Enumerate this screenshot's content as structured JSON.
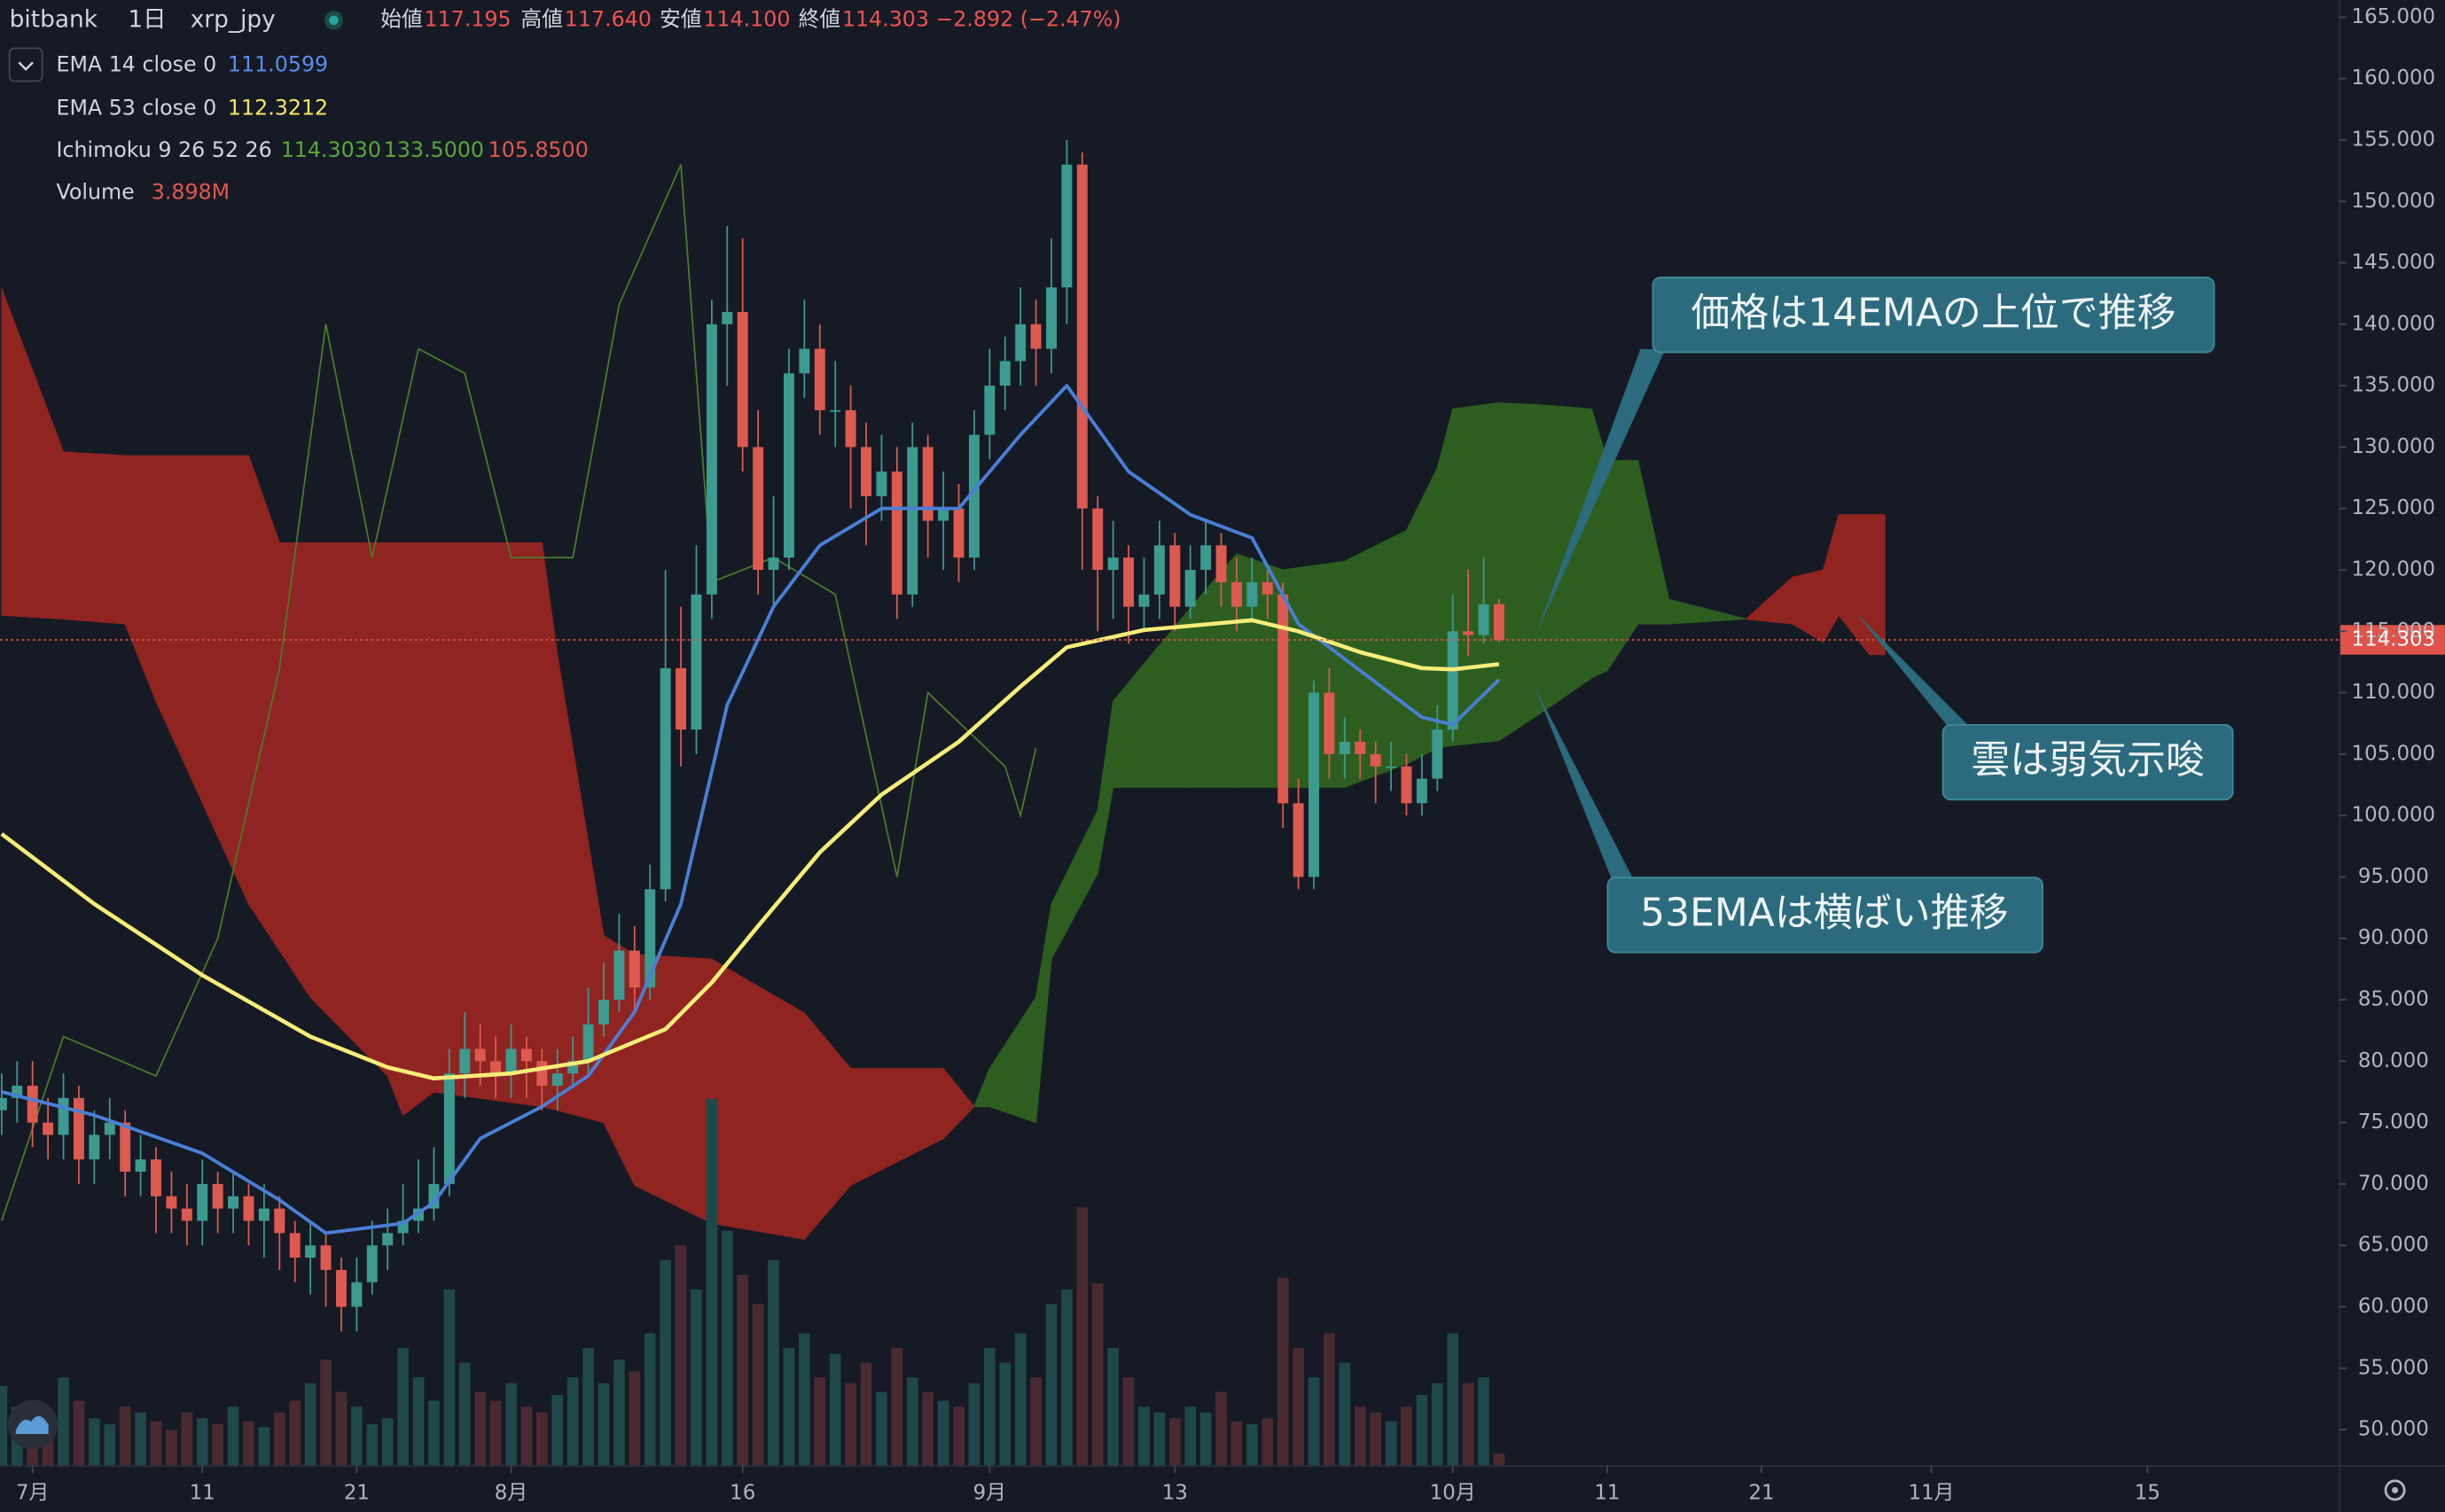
{
  "chart_data": {
    "type": "candlestick",
    "header": {
      "exchange": "bitbank",
      "interval": "1日",
      "symbol": "xrp_jpy",
      "open_label": "始値",
      "open": "117.195",
      "high_label": "高値",
      "high": "117.640",
      "low_label": "安値",
      "low": "114.100",
      "close_label": "終値",
      "close": "114.303",
      "change": "−2.892 (−2.47%)"
    },
    "up_color": "#3d9a8f",
    "down_color": "#dd5a50",
    "volume_up_color": "#1f4849",
    "volume_down_color": "#4a2a31",
    "x": [
      -2,
      -1,
      0,
      1,
      2,
      3,
      4,
      5,
      6,
      7,
      8,
      9,
      10,
      11,
      12,
      13,
      14,
      15,
      16,
      17,
      18,
      19,
      20,
      21,
      22,
      23,
      24,
      25,
      26,
      27,
      28,
      29,
      30,
      31,
      32,
      33,
      34,
      35,
      36,
      37,
      38,
      39,
      40,
      41,
      42,
      43,
      44,
      45,
      46,
      47,
      48,
      49,
      50,
      51,
      52,
      53,
      54,
      55,
      56,
      57,
      58,
      59,
      60,
      61,
      62,
      63,
      64,
      65,
      66,
      67,
      68,
      69,
      70,
      71,
      72,
      73,
      74,
      75,
      76,
      77,
      78,
      79,
      80,
      81,
      82,
      83,
      84,
      85,
      86,
      87,
      88,
      89,
      90,
      91,
      92,
      93,
      94,
      95
    ],
    "open": [
      76,
      77,
      78,
      75,
      74,
      77,
      72,
      74,
      75,
      71,
      72,
      69,
      68,
      67,
      70,
      68,
      69,
      67,
      68,
      66,
      64,
      65,
      63,
      60,
      62,
      65,
      66,
      67,
      68,
      70,
      79,
      81,
      80,
      79,
      81,
      80,
      78,
      79,
      80,
      83,
      85,
      89,
      86,
      94,
      112,
      107,
      118,
      140,
      141,
      130,
      120,
      121,
      136,
      138,
      133,
      133,
      130,
      126,
      128,
      118,
      130,
      124,
      125,
      121,
      131,
      135,
      137,
      140,
      138,
      143,
      153,
      125,
      120,
      121,
      117,
      118,
      122,
      117,
      120,
      122,
      119,
      117,
      119,
      118,
      101,
      95,
      110,
      105,
      106,
      105,
      104,
      104,
      101,
      103,
      107,
      115,
      114.7,
      117.195
    ],
    "high": [
      79,
      80,
      80,
      77,
      79,
      78,
      76,
      77,
      76,
      74,
      73,
      71,
      70,
      72,
      71,
      71,
      70,
      70,
      69,
      67,
      67,
      66,
      64,
      64,
      67,
      68,
      70,
      72,
      73,
      81,
      84,
      83,
      82,
      83,
      82,
      81,
      81,
      82,
      86,
      88,
      92,
      91,
      96,
      120,
      117,
      122,
      142,
      148,
      147,
      133,
      126,
      138,
      142,
      140,
      137,
      135,
      132,
      131,
      130,
      132,
      131,
      128,
      127,
      133,
      138,
      139,
      143,
      142,
      147,
      155,
      154,
      126,
      124,
      122,
      121,
      124,
      123,
      122,
      124,
      123,
      121,
      121,
      120,
      119,
      103,
      111,
      112,
      108,
      107,
      106,
      106,
      105,
      105,
      109,
      118,
      120,
      121,
      117.64
    ],
    "low": [
      74,
      75,
      73,
      72,
      72,
      70,
      70,
      72,
      69,
      69,
      66,
      66,
      65,
      65,
      66,
      66,
      65,
      64,
      63,
      62,
      61,
      60,
      58,
      58,
      61,
      63,
      65,
      66,
      67,
      69,
      77,
      78,
      77,
      77,
      77,
      76,
      76,
      78,
      79,
      82,
      84,
      84,
      85,
      93,
      104,
      105,
      116,
      135,
      128,
      118,
      117,
      120,
      134,
      131,
      130,
      125,
      122,
      124,
      116,
      117,
      121,
      120,
      119,
      120,
      129,
      133,
      135,
      135,
      136,
      140,
      120,
      115,
      116,
      114,
      115,
      116,
      115,
      116,
      118,
      117,
      115,
      116,
      116,
      99,
      94,
      94,
      103,
      103,
      103,
      101,
      102,
      100,
      100,
      102,
      106,
      113,
      114,
      114.1
    ],
    "close": [
      77,
      78,
      75,
      74,
      77,
      72,
      74,
      75,
      71,
      72,
      69,
      68,
      67,
      70,
      68,
      69,
      67,
      68,
      66,
      64,
      65,
      63,
      60,
      62,
      65,
      66,
      67,
      68,
      70,
      79,
      81,
      80,
      79,
      81,
      80,
      78,
      79,
      80,
      83,
      85,
      89,
      86,
      94,
      112,
      107,
      118,
      140,
      141,
      130,
      120,
      121,
      136,
      138,
      133,
      133,
      130,
      126,
      128,
      118,
      130,
      124,
      125,
      121,
      131,
      135,
      137,
      140,
      138,
      143,
      153,
      125,
      120,
      121,
      117,
      118,
      122,
      117,
      120,
      122,
      119,
      117,
      119,
      118,
      101,
      95,
      110,
      105,
      106,
      105,
      104,
      104,
      101,
      103,
      107,
      115,
      114.7,
      117.195,
      114.303
    ],
    "volume": [
      27,
      20,
      22,
      18,
      30,
      22,
      16,
      14,
      20,
      18,
      15,
      12,
      18,
      16,
      14,
      20,
      15,
      13,
      18,
      22,
      28,
      36,
      25,
      20,
      14,
      16,
      40,
      30,
      22,
      60,
      35,
      25,
      22,
      28,
      20,
      18,
      24,
      30,
      40,
      28,
      36,
      32,
      45,
      70,
      75,
      60,
      125,
      80,
      65,
      55,
      70,
      40,
      45,
      30,
      38,
      28,
      35,
      25,
      40,
      30,
      25,
      22,
      20,
      28,
      40,
      35,
      45,
      30,
      55,
      60,
      88,
      62,
      40,
      30,
      20,
      18,
      16,
      20,
      18,
      25,
      15,
      14,
      16,
      64,
      40,
      30,
      45,
      35,
      20,
      18,
      15,
      20,
      24,
      28,
      45,
      28,
      30,
      3.898
    ],
    "volume_lim": [
      0,
      500
    ],
    "ema": [
      {
        "name": "EMA 14 close 0",
        "color": "#4a7fd6",
        "x": [
          -2,
          4,
          11,
          16,
          19,
          24,
          26,
          29,
          33,
          36,
          39,
          42,
          45,
          48,
          51,
          55,
          60,
          64,
          67,
          71,
          75,
          79,
          82,
          86,
          90,
          92,
          95
        ],
        "values": [
          77.5,
          75.6,
          72.5,
          68.7,
          66,
          66.8,
          68.5,
          73.7,
          76.3,
          78.8,
          84,
          92.8,
          109,
          117,
          122,
          125,
          125,
          131,
          135,
          128,
          124.5,
          122.6,
          115.6,
          111.8,
          108,
          107.4,
          111.0599
        ]
      },
      {
        "name": "EMA 53 close 0",
        "color": "#f6ec79",
        "x": [
          -2,
          4,
          11,
          18,
          23,
          26,
          31,
          36,
          41,
          44,
          47,
          51,
          55,
          60,
          64,
          67,
          72,
          79,
          82,
          86,
          90,
          92,
          95
        ],
        "values": [
          98.5,
          92.8,
          87,
          82,
          79.5,
          78.6,
          79,
          80,
          82.6,
          86.4,
          91,
          97,
          101.7,
          106,
          110.5,
          113.7,
          115.1,
          115.9,
          115,
          113.3,
          112,
          111.9,
          112.3212
        ]
      }
    ],
    "ichimoku": {
      "name": "Ichimoku 9 26 52 26",
      "readouts": [
        "114.3030",
        "133.5000",
        "105.8500"
      ],
      "readout_colors": [
        "#5aa63a",
        "#5aa63a",
        "#e0584f"
      ],
      "bull_color": "#2d5e20",
      "bear_color": "#8f2420",
      "lagging_color": "#4b7a2b",
      "lagging_x": [
        -2,
        2,
        8,
        12,
        16,
        19,
        22,
        25,
        28,
        31,
        35,
        38,
        42,
        44,
        48,
        52,
        56,
        58,
        63,
        64,
        65
      ],
      "lagging": [
        67,
        82,
        78.8,
        90,
        112,
        140,
        121,
        138,
        136,
        121,
        121,
        141.6,
        153,
        119,
        121,
        118,
        95,
        110,
        104,
        100,
        105.5
      ],
      "cloud_x": [
        -2,
        2,
        6,
        8,
        14,
        16,
        18,
        23,
        24,
        26,
        33,
        34,
        37,
        39,
        44,
        50,
        53,
        59,
        61,
        62,
        65,
        66,
        69,
        70,
        75,
        78,
        81,
        85,
        89,
        91,
        92,
        95,
        98,
        101,
        102,
        104,
        106,
        111,
        114,
        116,
        117,
        119,
        120
      ],
      "span_a": [
        116.3,
        116,
        115.6,
        109.3,
        92.8,
        89,
        85.2,
        78.8,
        75.6,
        77.5,
        76.3,
        76,
        75,
        69.9,
        66.8,
        65.5,
        69.9,
        73.7,
        76.3,
        79.4,
        85.2,
        92.8,
        100.4,
        109.3,
        116.9,
        121.3,
        120,
        120.7,
        123.2,
        128.3,
        133.1,
        133.6,
        133.4,
        133.1,
        128.9,
        128.9,
        117.6,
        116,
        115.6,
        114.1,
        116.3,
        113.1,
        113.1
      ],
      "span_b": [
        142.9,
        129.6,
        129.3,
        129.3,
        129.3,
        122.2,
        122.2,
        122.2,
        122.2,
        122.2,
        122.2,
        113.1,
        90.2,
        88.7,
        88.3,
        83.9,
        79.4,
        79.4,
        76.3,
        76.3,
        75,
        88.3,
        95.3,
        102.3,
        102.3,
        102.3,
        102.3,
        102.3,
        104.2,
        105.5,
        105.7,
        106.1,
        108.6,
        111.2,
        111.8,
        115.6,
        115.6,
        116,
        119.4,
        120,
        124.5,
        124.5,
        124.5
      ]
    },
    "volume_legend": {
      "name": "Volume",
      "readout": "3.898M"
    },
    "last_price": 114.303,
    "last_price_color": "#e0534a",
    "xlim": [
      -2.1,
      149.4
    ],
    "xticks": [
      {
        "value": 0,
        "label": "7月"
      },
      11,
      21,
      {
        "value": 31,
        "label": "8月"
      },
      {
        "value": 46,
        "label": "16"
      },
      {
        "value": 62,
        "label": "9月"
      },
      {
        "value": 74,
        "label": "13"
      },
      {
        "value": 92,
        "label": "10月"
      },
      {
        "value": 102,
        "label": "11"
      },
      {
        "value": 112,
        "label": "21"
      },
      {
        "value": 123,
        "label": "11月"
      },
      {
        "value": 137,
        "label": "15"
      }
    ],
    "ylim": [
      47.1,
      166.4
    ],
    "yticks": [
      {
        "value": 50,
        "label": "50.000"
      },
      {
        "value": 55,
        "label": "55.000"
      },
      {
        "value": 60,
        "label": "60.000"
      },
      {
        "value": 65,
        "label": "65.000"
      },
      {
        "value": 70,
        "label": "70.000"
      },
      {
        "value": 75,
        "label": "75.000"
      },
      {
        "value": 80,
        "label": "80.000"
      },
      {
        "value": 85,
        "label": "85.000"
      },
      {
        "value": 90,
        "label": "90.000"
      },
      {
        "value": 95,
        "label": "95.000"
      },
      {
        "value": 100,
        "label": "100.000"
      },
      {
        "value": 105,
        "label": "105.000"
      },
      {
        "value": 110,
        "label": "110.000"
      },
      {
        "value": 115,
        "label": "115.000"
      },
      {
        "value": 120,
        "label": "120.000"
      },
      {
        "value": 125,
        "label": "125.000"
      },
      {
        "value": 130,
        "label": "130.000"
      },
      {
        "value": 135,
        "label": "135.000"
      },
      {
        "value": 140,
        "label": "140.000"
      },
      {
        "value": 145,
        "label": "145.000"
      },
      {
        "value": 150,
        "label": "150.000"
      },
      {
        "value": 155,
        "label": "155.000"
      },
      {
        "value": 160,
        "label": "160.000"
      },
      {
        "value": 165,
        "label": "165.000"
      }
    ],
    "grid": false,
    "annotations": [
      "価格は14EMAの上位で推移",
      "雲は弱気示唆",
      "53EMAは横ばい推移"
    ]
  }
}
